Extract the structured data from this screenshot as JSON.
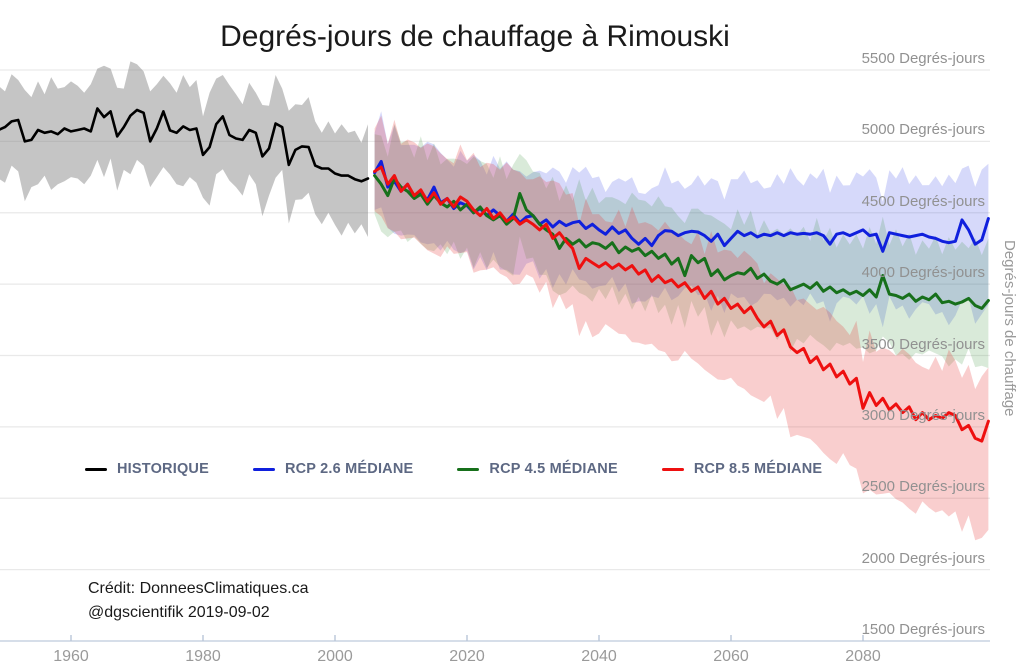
{
  "credit": {
    "line1": "Crédit: DonneesClimatiques.ca",
    "line2": "@dgscientifik 2019-09-02"
  },
  "chart_data": {
    "type": "line",
    "title": "Degrés-jours de chauffage à Rimouski",
    "xlabel": "",
    "ylabel": "Degrés-jours de chauffage",
    "grid": true,
    "legend_position": "bottom-left-inside",
    "x_axis": {
      "tick_values": [
        1960,
        1980,
        2000,
        2020,
        2040,
        2060,
        2080
      ],
      "tick_labels": [
        "1960",
        "1980",
        "2000",
        "2020",
        "2040",
        "2060",
        "2080"
      ],
      "range": [
        1949,
        2100
      ]
    },
    "y_axis": {
      "tick_values": [
        5500,
        5000,
        4500,
        4000,
        3500,
        3000,
        2500,
        2000,
        1500
      ],
      "tick_labels": [
        "5500 Degrés-jours",
        "5000 Degrés-jours",
        "4500 Degrés-jours",
        "4000 Degrés-jours",
        "3500 Degrés-jours",
        "3000 Degrés-jours",
        "2500 Degrés-jours",
        "2000 Degrés-jours",
        "1500 Degrés-jours"
      ],
      "range": [
        1500,
        5500
      ]
    },
    "legend": {
      "items": [
        {
          "label": "HISTORIQUE",
          "color": "#000000"
        },
        {
          "label": "RCP 2.6 MÉDIANE",
          "color": "#1020dd"
        },
        {
          "label": "RCP 4.5 MÉDIANE",
          "color": "#17701b"
        },
        {
          "label": "RCP 8.5 MÉDIANE",
          "color": "#ee1010"
        }
      ]
    },
    "series": [
      {
        "name": "HISTORIQUE",
        "color": "#000000",
        "line_width": 2.6,
        "start_year": 1949,
        "median": [
          5080,
          5100,
          5140,
          5150,
          5000,
          5010,
          5080,
          5060,
          5070,
          5050,
          5090,
          5070,
          5080,
          5090,
          5070,
          5230,
          5170,
          5210,
          5035,
          5100,
          5180,
          5220,
          5200,
          5000,
          5090,
          5210,
          5077,
          5060,
          5105,
          5080,
          5090,
          4905,
          4960,
          5120,
          5175,
          5045,
          5020,
          5010,
          5080,
          5060,
          4895,
          4950,
          5125,
          5100,
          4835,
          4940,
          4965,
          4960,
          4830,
          4810,
          4810,
          4775,
          4760,
          4760,
          4735,
          4720,
          4740
        ],
        "band": {
          "color": "#7f7f7f",
          "opacity": 0.45,
          "up": {
            "values": [
              310,
              250,
              330,
              280,
              360,
              300,
              340,
              270,
              380,
              320,
              290,
              350
            ],
            "grow": 0
          },
          "dn": {
            "values": [
              340,
              390,
              310,
              360,
              420,
              330,
              380,
              300,
              410,
              350,
              370,
              320
            ],
            "grow": 0
          }
        }
      },
      {
        "name": "RCP 2.6 MÉDIANE",
        "color": "#1020dd",
        "line_width": 3,
        "start_year": 2006,
        "median": [
          4780,
          4860,
          4680,
          4720,
          4650,
          4700,
          4610,
          4640,
          4590,
          4680,
          4570,
          4600,
          4530,
          4570,
          4550,
          4500,
          4530,
          4480,
          4520,
          4480,
          4440,
          4490,
          4430,
          4470,
          4480,
          4420,
          4450,
          4400,
          4440,
          4410,
          4430,
          4440,
          4390,
          4420,
          4380,
          4350,
          4400,
          4355,
          4380,
          4320,
          4280,
          4320,
          4270,
          4340,
          4375,
          4370,
          4340,
          4360,
          4370,
          4365,
          4340,
          4300,
          4350,
          4270,
          4320,
          4370,
          4340,
          4360,
          4330,
          4350,
          4340,
          4360,
          4340,
          4360,
          4350,
          4355,
          4350,
          4360,
          4340,
          4280,
          4350,
          4360,
          4340,
          4360,
          4380,
          4340,
          4350,
          4230,
          4360,
          4350,
          4340,
          4330,
          4340,
          4350,
          4330,
          4320,
          4300,
          4290,
          4300,
          4450,
          4380,
          4280,
          4310,
          4460
        ],
        "band": {
          "color": "#4550e6",
          "opacity": 0.22,
          "up": {
            "values": [
              280,
              350,
              300,
              390,
              320,
              270,
              360,
              310,
              400,
              290,
              340,
              260
            ],
            "grow": 1.0
          },
          "dn": {
            "values": [
              260,
              320,
              280,
              360,
              300,
              340,
              250,
              330,
              290,
              370,
              310,
              270
            ],
            "grow": 2.5
          }
        }
      },
      {
        "name": "RCP 4.5 MÉDIANE",
        "color": "#17701b",
        "line_width": 3,
        "start_year": 2006,
        "median": [
          4760,
          4700,
          4620,
          4740,
          4680,
          4650,
          4600,
          4630,
          4560,
          4620,
          4570,
          4540,
          4580,
          4520,
          4560,
          4500,
          4540,
          4480,
          4450,
          4480,
          4420,
          4460,
          4635,
          4520,
          4480,
          4420,
          4380,
          4350,
          4250,
          4320,
          4280,
          4310,
          4260,
          4290,
          4280,
          4250,
          4290,
          4220,
          4260,
          4230,
          4250,
          4200,
          4230,
          4180,
          4210,
          4140,
          4180,
          4060,
          4200,
          4150,
          4180,
          4060,
          4100,
          4030,
          4060,
          4080,
          4070,
          4110,
          4040,
          4070,
          4020,
          4000,
          4030,
          3960,
          3980,
          4000,
          3970,
          4010,
          3950,
          3980,
          3940,
          3960,
          3930,
          3950,
          3920,
          3960,
          3910,
          4060,
          3930,
          3920,
          3900,
          3930,
          3880,
          3910,
          3890,
          3930,
          3870,
          3880,
          3860,
          3875,
          3900,
          3850,
          3830,
          3885
        ],
        "band": {
          "color": "#2e8b2e",
          "opacity": 0.18,
          "up": {
            "values": [
              290,
              340,
              270,
              380,
              310,
              350,
              280,
              400,
              300,
              360,
              260,
              330
            ],
            "grow": 0.8
          },
          "dn": {
            "values": [
              270,
              330,
              290,
              370,
              300,
              350,
              260,
              340,
              310,
              380,
              280,
              320
            ],
            "grow": 1.0
          }
        }
      },
      {
        "name": "RCP 8.5 MÉDIANE",
        "color": "#ee1010",
        "line_width": 3,
        "start_year": 2006,
        "median": [
          4790,
          4820,
          4700,
          4760,
          4650,
          4700,
          4620,
          4660,
          4580,
          4640,
          4560,
          4600,
          4540,
          4610,
          4580,
          4520,
          4480,
          4530,
          4460,
          4500,
          4440,
          4470,
          4420,
          4450,
          4420,
          4380,
          4420,
          4320,
          4360,
          4300,
          4250,
          4110,
          4180,
          4150,
          4120,
          4150,
          4110,
          4140,
          4100,
          4130,
          4070,
          4100,
          4020,
          4060,
          4010,
          4030,
          3980,
          4010,
          3950,
          3980,
          3900,
          3950,
          3860,
          3900,
          3830,
          3860,
          3800,
          3840,
          3760,
          3700,
          3740,
          3640,
          3680,
          3560,
          3520,
          3550,
          3450,
          3490,
          3400,
          3440,
          3350,
          3390,
          3300,
          3340,
          3130,
          3240,
          3150,
          3200,
          3120,
          3160,
          3100,
          3140,
          3050,
          3100,
          3050,
          3080,
          3060,
          3100,
          3080,
          2980,
          3010,
          2920,
          2900,
          3040
        ],
        "band": {
          "color": "#e63c3c",
          "opacity": 0.25,
          "up": {
            "values": [
              300,
              360,
              280,
              390,
              330,
              310,
              370,
              290,
              400,
              320,
              350,
              270
            ],
            "grow": 0.6
          },
          "dn": {
            "values": [
              280,
              340,
              300,
              380,
              320,
              360,
              270,
              350,
              310,
              390,
              330,
              290
            ],
            "grow": 4.0
          }
        }
      }
    ],
    "style": {
      "gridline_color": "#e9e9e9",
      "axis_line_color": "#c9d4e2",
      "tick_color": "#b9c6d8"
    }
  }
}
